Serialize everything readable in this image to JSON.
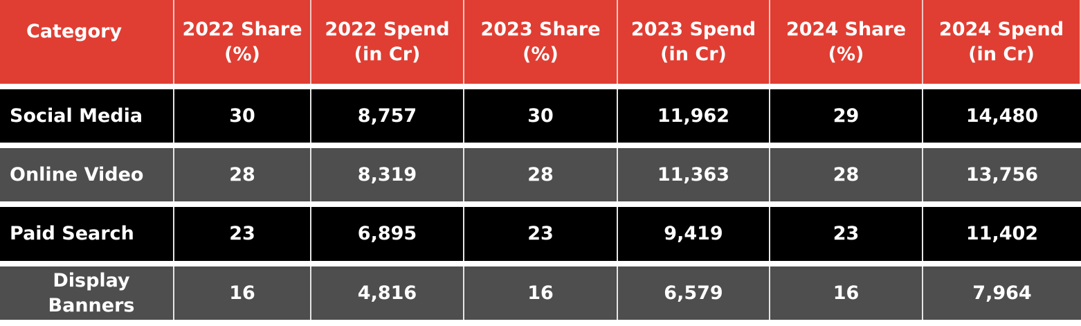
{
  "colors": {
    "header": "#e03e33",
    "row_dark": "#000000",
    "row_grey": "#4e4e4e"
  },
  "headers": [
    "Category",
    "2022 Share\n(%)",
    "2022 Spend\n(in Cr)",
    "2023 Share\n(%)",
    "2023 Spend\n(in Cr)",
    "2024 Share\n(%)",
    "2024 Spend\n(in Cr)"
  ],
  "rows": [
    [
      "Social Media",
      "30",
      "8,757",
      "30",
      "11,962",
      "29",
      "14,480"
    ],
    [
      "Online Video",
      "28",
      "8,319",
      "28",
      "11,363",
      "28",
      "13,756"
    ],
    [
      "Paid Search",
      "23",
      "6,895",
      "23",
      "9,419",
      "23",
      "11,402"
    ],
    [
      "Display Banners",
      "16",
      "4,816",
      "16",
      "6,579",
      "16",
      "7,964"
    ]
  ]
}
